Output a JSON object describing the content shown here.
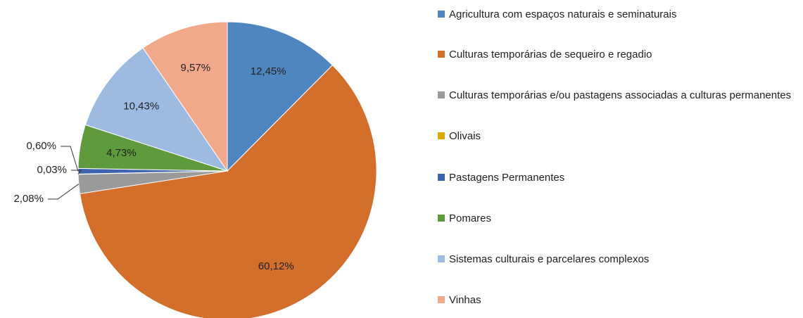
{
  "chart_data": {
    "type": "pie",
    "categories": [
      "Agricultura com espaços naturais e seminaturais",
      "Culturas temporárias de sequeiro e regadio",
      "Culturas temporárias e/ou pastagens associadas a culturas permanentes",
      "Olivais",
      "Pastagens Permanentes",
      "Pomares",
      "Sistemas culturais e parcelares complexos",
      "Vinhas"
    ],
    "values": [
      12.45,
      60.12,
      2.08,
      0.03,
      0.6,
      4.73,
      10.43,
      9.57
    ],
    "value_labels": [
      "12,45%",
      "60,12%",
      "2,08%",
      "0,03%",
      "0,60%",
      "4,73%",
      "10,43%",
      "9,57%"
    ],
    "colors": [
      "#4f86c0",
      "#d46e2b",
      "#9a9a9a",
      "#e0a800",
      "#3d64b0",
      "#5f9a3d",
      "#9dbbe1",
      "#f2a98b"
    ],
    "legend": "right"
  }
}
